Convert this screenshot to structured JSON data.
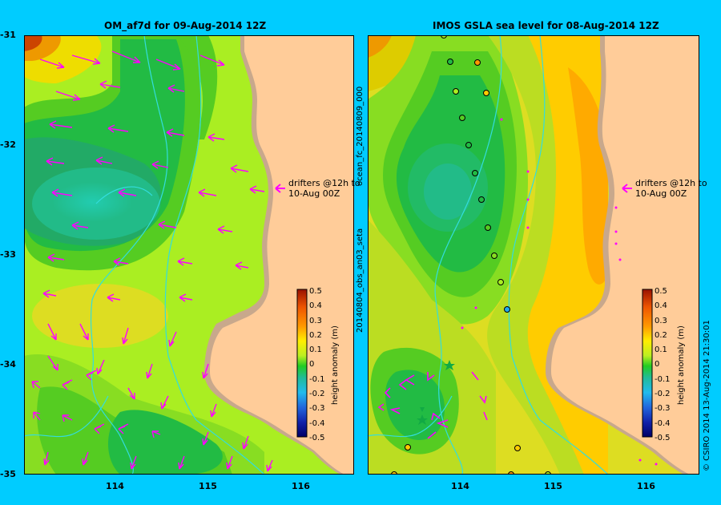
{
  "panels": [
    {
      "title": "OM_af7d for 09-Aug-2014 12Z",
      "drifter_note_line1": "drifters @12h to",
      "drifter_note_line2": "10-Aug 00Z"
    },
    {
      "title": "IMOS GSLA sea level  for 08-Aug-2014 12Z",
      "drifter_note_line1": "drifters @12h to",
      "drifter_note_line2": "10-Aug 00Z"
    }
  ],
  "y_ticks": [
    "-31",
    "-32",
    "-33",
    "-34",
    "-35"
  ],
  "x_ticks": [
    "114",
    "115",
    "116"
  ],
  "colorbar": {
    "label": "height anomaly (m)",
    "ticks": [
      "0.5",
      "0.4",
      "0.3",
      "0.2",
      "0.1",
      "0",
      "-0.1",
      "-0.2",
      "-0.3",
      "-0.4",
      "-0.5"
    ]
  },
  "side_labels": {
    "obs_label": "20140804_obs_an03_seta",
    "forecast_label": "ocean_fc_20140809_000",
    "footer": "© CSIRO 2014   13-Aug-2014 21:30:01"
  },
  "colors": {
    "background": "#00ccff",
    "land": "#ffcc99",
    "shelf": "#c8a88c",
    "arrow": "#ff00ff",
    "contour": "#33dddd"
  }
}
